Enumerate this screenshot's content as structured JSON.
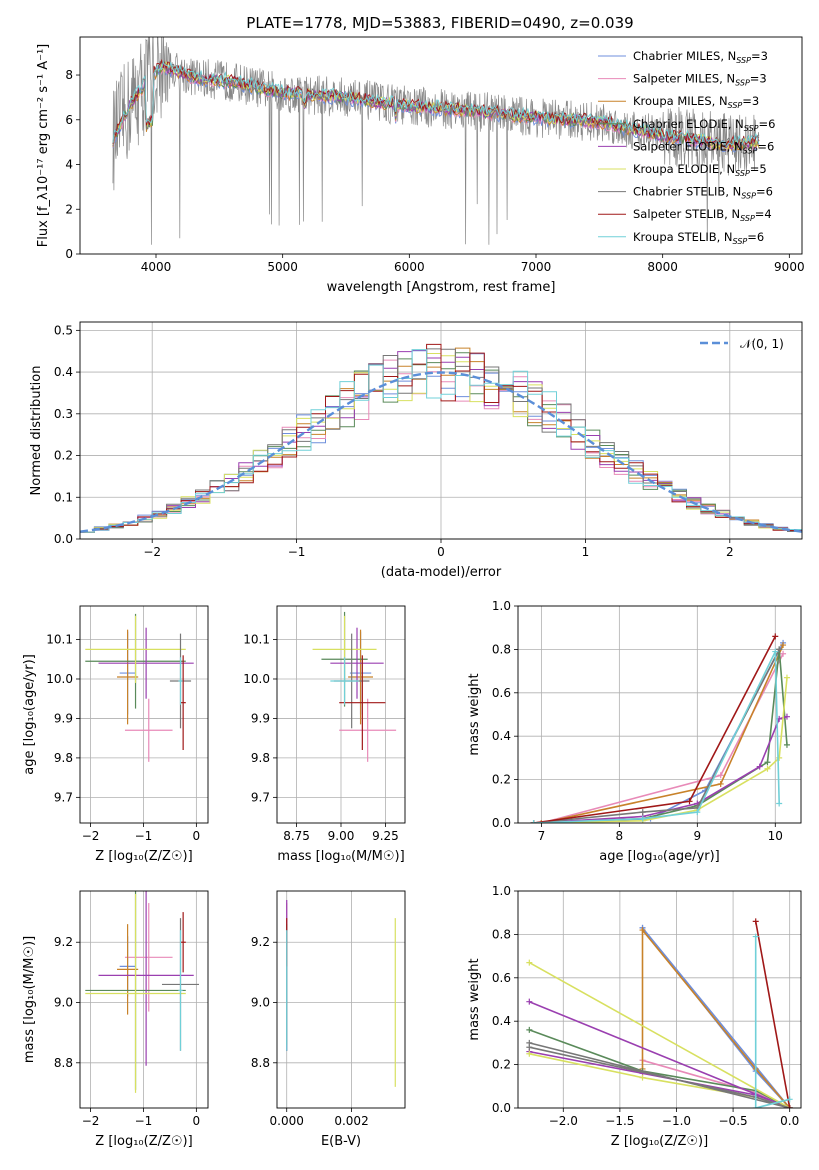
{
  "figure": {
    "title": "PLATE=1778, MJD=53883, FIBERID=0490, z=0.039"
  },
  "colors": [
    "#6f8fdc",
    "#e88ab8",
    "#c8822a",
    "#5a8a5a",
    "#9a3fb0",
    "#d8e060",
    "#777777",
    "#a01818",
    "#70d0d8"
  ],
  "chart_data": [
    {
      "id": "spectrum",
      "type": "line",
      "xlabel": "wavelength [Angstrom, rest frame]",
      "ylabel": "Flux [f_λ10⁻¹⁷ erg cm⁻² s⁻¹ A⁻¹]",
      "xlim": [
        3400,
        9100
      ],
      "ylim": [
        0,
        9.7
      ],
      "xticks": [
        4000,
        5000,
        6000,
        7000,
        8000,
        9000
      ],
      "yticks": [
        0,
        2,
        4,
        6,
        8
      ],
      "grid": false,
      "legend_position": "top-right",
      "data_x_range": [
        3660,
        8760
      ],
      "continuum": {
        "x": [
          3660,
          3800,
          3950,
          4050,
          4300,
          4600,
          5000,
          5500,
          6000,
          6500,
          7000,
          7500,
          8000,
          8500,
          8760
        ],
        "y": [
          5.1,
          6.7,
          7.9,
          8.4,
          7.9,
          7.7,
          7.2,
          7.0,
          6.6,
          6.4,
          6.1,
          5.9,
          5.3,
          4.9,
          5.0
        ]
      },
      "series": [
        {
          "name": "Chabrier MILES, N_SSP=3",
          "label_base": "Chabrier MILES, N",
          "label_sub": "SSP",
          "label_tail": "=3"
        },
        {
          "name": "Salpeter MILES, N_SSP=3",
          "label_base": "Salpeter MILES, N",
          "label_sub": "SSP",
          "label_tail": "=3"
        },
        {
          "name": "Kroupa MILES, N_SSP=3",
          "label_base": "Kroupa MILES, N",
          "label_sub": "SSP",
          "label_tail": "=3"
        },
        {
          "name": "Chabrier ELODIE, N_SSP=6",
          "label_base": "Chabrier ELODIE, N",
          "label_sub": "SSP",
          "label_tail": "=6"
        },
        {
          "name": "Salpeter ELODIE, N_SSP=6",
          "label_base": "Salpeter ELODIE, N",
          "label_sub": "SSP",
          "label_tail": "=6"
        },
        {
          "name": "Kroupa ELODIE, N_SSP=5",
          "label_base": "Kroupa ELODIE, N",
          "label_sub": "SSP",
          "label_tail": "=5"
        },
        {
          "name": "Chabrier STELIB, N_SSP=6",
          "label_base": "Chabrier STELIB, N",
          "label_sub": "SSP",
          "label_tail": "=6"
        },
        {
          "name": "Salpeter STELIB, N_SSP=4",
          "label_base": "Salpeter STELIB, N",
          "label_sub": "SSP",
          "label_tail": "=4"
        },
        {
          "name": "Kroupa STELIB, N_SSP=6",
          "label_base": "Kroupa STELIB, N",
          "label_sub": "SSP",
          "label_tail": "=6"
        }
      ]
    },
    {
      "id": "residuals",
      "type": "step",
      "xlabel": "(data-model)/error",
      "ylabel": "Normed distribution",
      "xlim": [
        -2.5,
        2.5
      ],
      "ylim": [
        0,
        0.52
      ],
      "xticks": [
        -2,
        -1,
        0,
        1,
        2
      ],
      "yticks": [
        0.0,
        0.1,
        0.2,
        0.3,
        0.4,
        0.5
      ],
      "grid": true,
      "legend_position": "top-right",
      "reference_curve": {
        "name": "𝒩(0, 1)",
        "mean": 0,
        "sigma": 1
      },
      "bin_width": 0.1
    },
    {
      "id": "age_vs_Z",
      "type": "errorbar",
      "xlabel": "Z [log₁₀(Z/Z☉)]",
      "ylabel": "age [log₁₀(age/yr)]",
      "xlim": [
        -2.2,
        0.22
      ],
      "ylim": [
        9.635,
        10.185
      ],
      "xticks": [
        -2,
        -1,
        0
      ],
      "yticks": [
        9.7,
        9.8,
        9.9,
        10.0,
        10.1
      ],
      "grid": true,
      "points": [
        {
          "x": -1.3,
          "xerr": 0.15,
          "y": 10.015,
          "yerr": 0.105
        },
        {
          "x": -0.9,
          "xerr": 0.45,
          "y": 9.87,
          "yerr": 0.08
        },
        {
          "x": -1.3,
          "xerr": 0.2,
          "y": 10.005,
          "yerr": 0.12
        },
        {
          "x": -1.15,
          "xerr": 0.95,
          "y": 10.045,
          "yerr": 0.12
        },
        {
          "x": -0.95,
          "xerr": 0.9,
          "y": 10.04,
          "yerr": 0.09
        },
        {
          "x": -1.15,
          "xerr": 0.95,
          "y": 10.075,
          "yerr": 0.085
        },
        {
          "x": -0.3,
          "xerr": 0.2,
          "y": 9.995,
          "yerr": 0.12
        },
        {
          "x": -0.25,
          "xerr": 0.05,
          "y": 9.94,
          "yerr": 0.12
        },
        {
          "x": -0.3,
          "xerr": 0.04,
          "y": 9.995,
          "yerr": 0.06
        }
      ]
    },
    {
      "id": "age_vs_mass",
      "type": "errorbar",
      "xlabel": "mass [log₁₀(M/M☉)]",
      "ylabel": "",
      "xlim": [
        8.64,
        9.36
      ],
      "ylim": [
        9.635,
        10.185
      ],
      "xticks": [
        8.75,
        9.0,
        9.25
      ],
      "yticks": [
        9.7,
        9.8,
        9.9,
        10.0,
        10.1
      ],
      "grid": true,
      "points": [
        {
          "x": 9.11,
          "xerr": 0.06,
          "y": 10.015,
          "yerr": 0.105
        },
        {
          "x": 9.15,
          "xerr": 0.16,
          "y": 9.87,
          "yerr": 0.08
        },
        {
          "x": 9.11,
          "xerr": 0.07,
          "y": 10.005,
          "yerr": 0.12
        },
        {
          "x": 9.02,
          "xerr": 0.13,
          "y": 10.05,
          "yerr": 0.12
        },
        {
          "x": 9.09,
          "xerr": 0.15,
          "y": 10.04,
          "yerr": 0.09
        },
        {
          "x": 9.02,
          "xerr": 0.18,
          "y": 10.075,
          "yerr": 0.085
        },
        {
          "x": 9.06,
          "xerr": 0.1,
          "y": 9.995,
          "yerr": 0.12
        },
        {
          "x": 9.12,
          "xerr": 0.13,
          "y": 9.94,
          "yerr": 0.12
        },
        {
          "x": 9.02,
          "xerr": 0.08,
          "y": 9.995,
          "yerr": 0.06
        }
      ]
    },
    {
      "id": "weight_vs_age",
      "type": "line",
      "xlabel": "age [log₁₀(age/yr)]",
      "ylabel": "mass weight",
      "xlim": [
        6.7,
        10.33
      ],
      "ylim": [
        0,
        1.0
      ],
      "xticks": [
        7,
        8,
        9,
        10
      ],
      "yticks": [
        0.0,
        0.2,
        0.4,
        0.6,
        0.8,
        1.0
      ],
      "grid": true,
      "series": [
        {
          "x": [
            7.0,
            8.4,
            9.1,
            10.1
          ],
          "y": [
            0.0,
            0.02,
            0.15,
            0.83
          ]
        },
        {
          "x": [
            7.0,
            9.3,
            10.1
          ],
          "y": [
            0.0,
            0.22,
            0.78
          ]
        },
        {
          "x": [
            7.0,
            9.3,
            10.1
          ],
          "y": [
            0.0,
            0.18,
            0.82
          ]
        },
        {
          "x": [
            6.9,
            8.3,
            9.0,
            9.9,
            10.05,
            10.15
          ],
          "y": [
            0.0,
            0.02,
            0.08,
            0.28,
            0.8,
            0.36
          ]
        },
        {
          "x": [
            6.9,
            8.3,
            9.0,
            9.8,
            10.05,
            10.15
          ],
          "y": [
            0.0,
            0.03,
            0.09,
            0.26,
            0.48,
            0.49
          ]
        },
        {
          "x": [
            6.9,
            8.3,
            9.0,
            9.9,
            10.05,
            10.15
          ],
          "y": [
            0.0,
            0.01,
            0.06,
            0.25,
            0.3,
            0.67
          ]
        },
        {
          "x": [
            6.9,
            8.3,
            9.0,
            10.05
          ],
          "y": [
            0.0,
            0.05,
            0.07,
            0.8
          ]
        },
        {
          "x": [
            6.9,
            8.9,
            10.0
          ],
          "y": [
            0.0,
            0.1,
            0.86
          ]
        },
        {
          "x": [
            6.9,
            8.3,
            9.0,
            10.0,
            10.05
          ],
          "y": [
            0.0,
            0.02,
            0.05,
            0.79,
            0.09
          ]
        }
      ]
    },
    {
      "id": "mass_vs_Z",
      "type": "errorbar",
      "xlabel": "Z [log₁₀(Z/Z☉)]",
      "ylabel": "mass [log₁₀(M/M☉)]",
      "xlim": [
        -2.2,
        0.22
      ],
      "ylim": [
        8.65,
        9.37
      ],
      "xticks": [
        -2,
        -1,
        0
      ],
      "yticks": [
        8.8,
        9.0,
        9.2
      ],
      "grid": true,
      "points": [
        {
          "x": -1.3,
          "xerr": 0.15,
          "y": 9.12,
          "yerr": 0.1
        },
        {
          "x": -0.9,
          "xerr": 0.45,
          "y": 9.15,
          "yerr": 0.18
        },
        {
          "x": -1.3,
          "xerr": 0.2,
          "y": 9.11,
          "yerr": 0.15
        },
        {
          "x": -1.15,
          "xerr": 0.95,
          "y": 9.04,
          "yerr": 0.33
        },
        {
          "x": -0.95,
          "xerr": 0.9,
          "y": 9.09,
          "yerr": 0.3
        },
        {
          "x": -1.15,
          "xerr": 0.95,
          "y": 9.03,
          "yerr": 0.33
        },
        {
          "x": -0.3,
          "xerr": 0.35,
          "y": 9.06,
          "yerr": 0.22
        },
        {
          "x": -0.25,
          "xerr": 0.05,
          "y": 9.2,
          "yerr": 0.1
        },
        {
          "x": -0.3,
          "xerr": 0.04,
          "y": 9.04,
          "yerr": 0.2
        }
      ]
    },
    {
      "id": "mass_vs_ebv",
      "type": "errorbar",
      "xlabel": "E(B-V)",
      "ylabel": "",
      "xlim": [
        -0.0003,
        0.00365
      ],
      "ylim": [
        8.65,
        9.37
      ],
      "xticks": [
        0.0,
        0.002
      ],
      "xtick_labels": [
        "0.000",
        "0.002"
      ],
      "yticks": [
        8.8,
        9.0,
        9.2
      ],
      "grid": true,
      "points": [
        {
          "x": 0.0,
          "xerr": 0,
          "y": 9.12,
          "yerr": 0.1
        },
        {
          "x": 0.0,
          "xerr": 0,
          "y": 9.15,
          "yerr": 0.18
        },
        {
          "x": 0.0,
          "xerr": 0,
          "y": 9.11,
          "yerr": 0.15
        },
        {
          "x": 0.0,
          "xerr": 0,
          "y": 9.04,
          "yerr": 0.2
        },
        {
          "x": 0.0,
          "xerr": 0,
          "y": 9.09,
          "yerr": 0.25
        },
        {
          "x": 0.00335,
          "xerr": 0,
          "y": 9.0,
          "yerr": 0.28
        },
        {
          "x": 0.0,
          "xerr": 0,
          "y": 9.06,
          "yerr": 0.2
        },
        {
          "x": 0.0,
          "xerr": 0,
          "y": 9.2,
          "yerr": 0.08
        },
        {
          "x": 0.0,
          "xerr": 0,
          "y": 9.04,
          "yerr": 0.2
        }
      ]
    },
    {
      "id": "weight_vs_Z",
      "type": "line",
      "xlabel": "Z [log₁₀(Z/Z☉)]",
      "ylabel": "mass weight",
      "xlim": [
        -2.4,
        0.1
      ],
      "ylim": [
        0,
        1.0
      ],
      "xticks": [
        -2.0,
        -1.5,
        -1.0,
        -0.5,
        0.0
      ],
      "xtick_labels": [
        "−2.0",
        "−1.5",
        "−1.0",
        "−0.5",
        "0.0"
      ],
      "yticks": [
        0.0,
        0.2,
        0.4,
        0.6,
        0.8,
        1.0
      ],
      "grid": true,
      "series": [
        {
          "x": [
            -1.3,
            -0.3,
            0.0,
            -1.3
          ],
          "y": [
            0.83,
            0.17,
            0.0,
            0.83
          ]
        },
        {
          "x": [
            -1.3,
            -0.3,
            0.0
          ],
          "y": [
            0.22,
            0.07,
            0.0
          ]
        },
        {
          "x": [
            -1.3,
            -1.3,
            -0.3,
            0.0
          ],
          "y": [
            0.18,
            0.82,
            0.18,
            0.0
          ]
        },
        {
          "x": [
            -2.3,
            -1.3,
            -0.3,
            0.0
          ],
          "y": [
            0.36,
            0.17,
            0.08,
            0.0
          ]
        },
        {
          "x": [
            -2.3,
            -1.3,
            -0.3,
            0.0,
            -2.3
          ],
          "y": [
            0.26,
            0.16,
            0.06,
            0.0,
            0.49
          ]
        },
        {
          "x": [
            -2.3,
            -1.3,
            -0.3,
            0.0,
            -2.3
          ],
          "y": [
            0.25,
            0.14,
            0.05,
            0.0,
            0.67
          ]
        },
        {
          "x": [
            -2.3,
            -0.3,
            0.0,
            -2.3
          ],
          "y": [
            0.28,
            0.05,
            0.0,
            0.3
          ]
        },
        {
          "x": [
            -0.3,
            0.0
          ],
          "y": [
            0.86,
            0.0
          ]
        },
        {
          "x": [
            -0.3,
            -0.3,
            0.0
          ],
          "y": [
            0.79,
            0.0,
            0.04
          ]
        }
      ]
    }
  ]
}
